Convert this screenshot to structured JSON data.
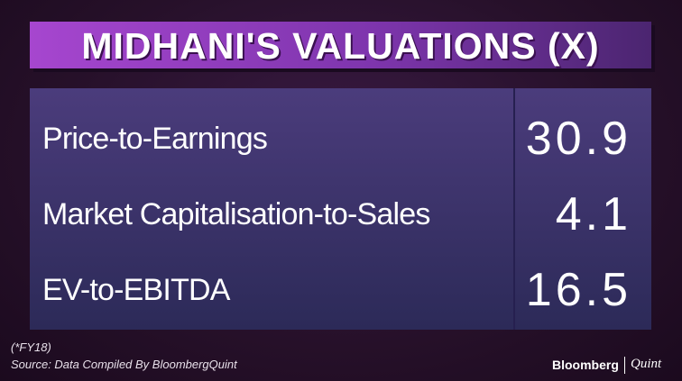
{
  "header": {
    "title": "MIDHANI'S VALUATIONS (X)"
  },
  "table": {
    "rows": [
      [
        "Price-to-Earnings",
        30.9
      ],
      [
        "Market Capitalisation-to-Sales",
        4.1
      ],
      [
        "EV-to-EBITDA",
        16.5
      ]
    ]
  },
  "footer": {
    "note": "(*FY18)",
    "source": "Source: Data Compiled By BloombergQuint",
    "brand": "Bloomberg",
    "brand2": "Quint"
  }
}
